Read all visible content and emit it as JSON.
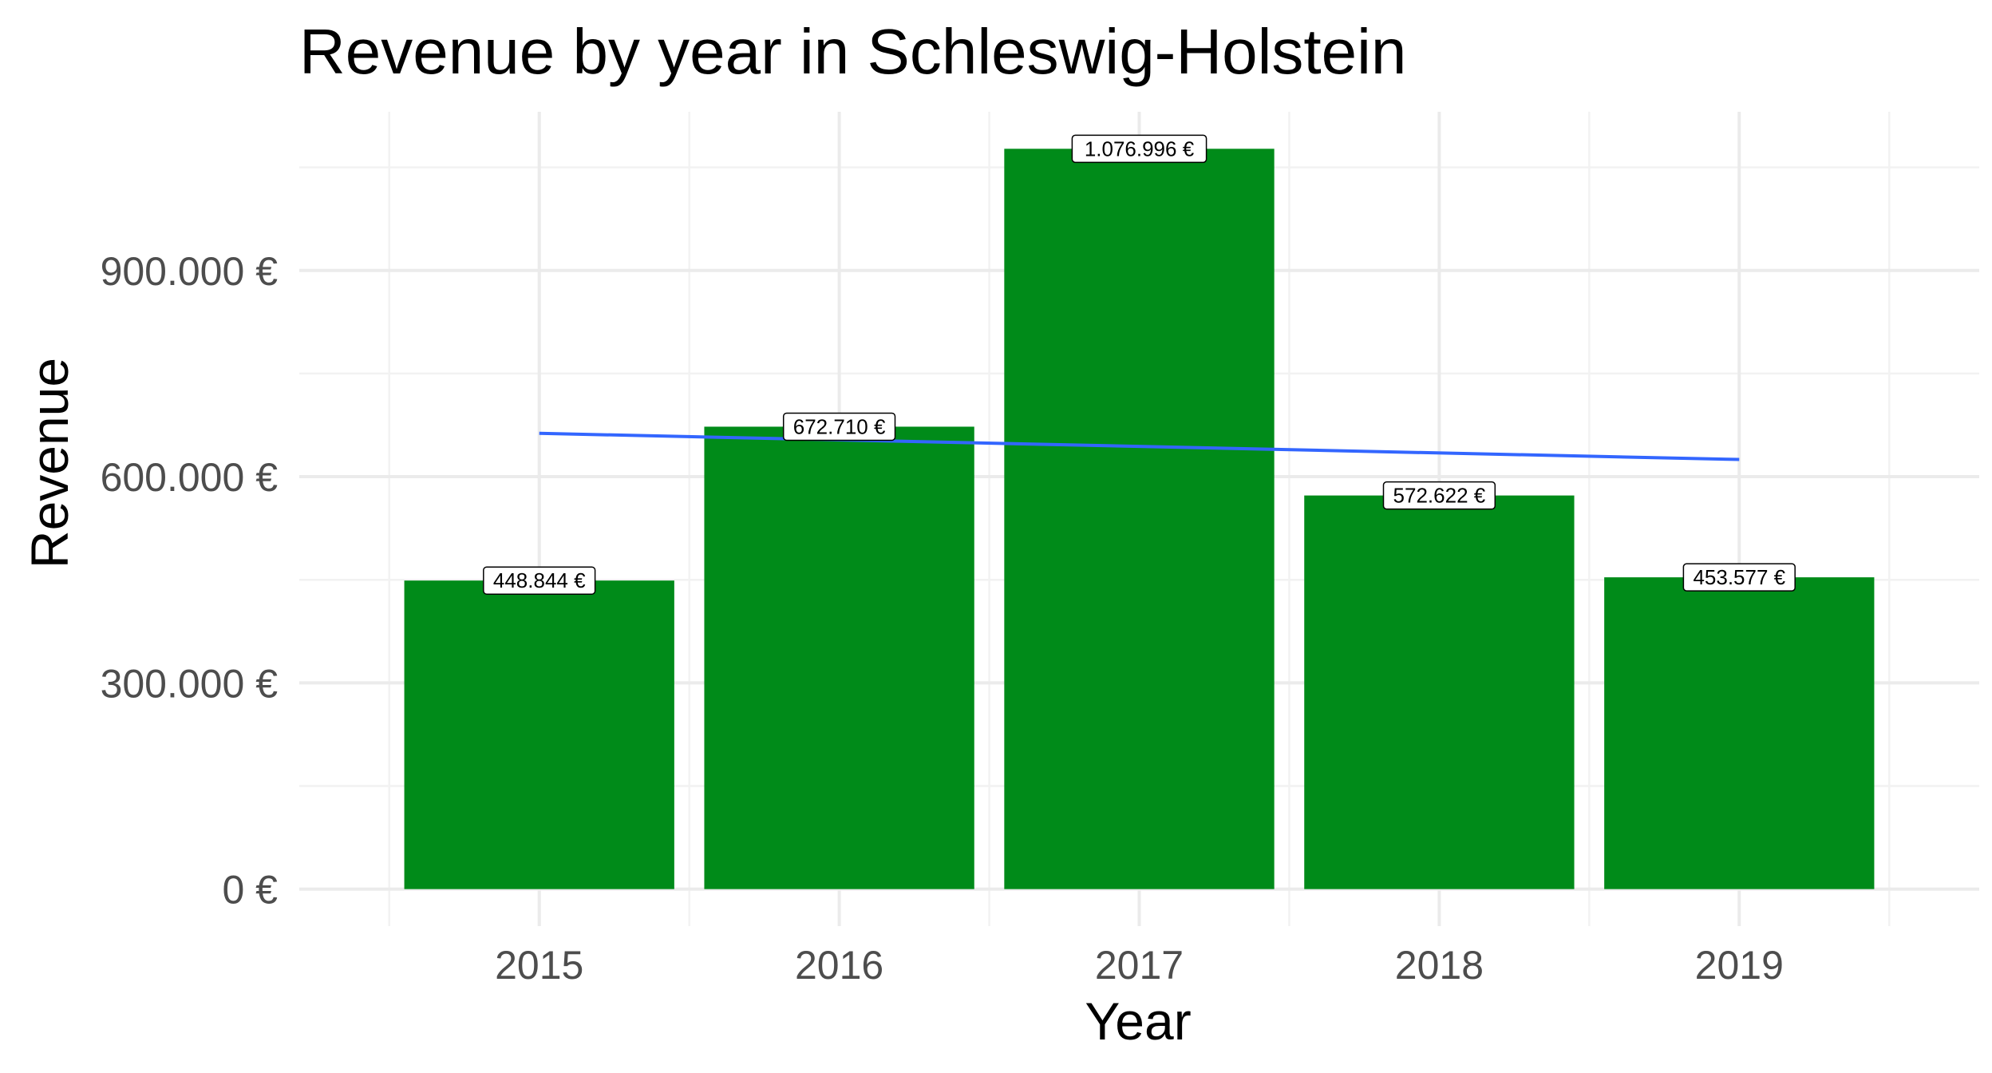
{
  "chart_data": {
    "type": "bar",
    "title": "Revenue by year in Schleswig-Holstein",
    "xlabel": "Year",
    "ylabel": "Revenue",
    "categories": [
      "2015",
      "2016",
      "2017",
      "2018",
      "2019"
    ],
    "values": [
      448844,
      672710,
      1076996,
      572622,
      453577
    ],
    "value_labels": [
      "448.844 €",
      "672.710 €",
      "1.076.996 €",
      "572.622 €",
      "453.577 €"
    ],
    "y_ticks": [
      0,
      300000,
      600000,
      900000
    ],
    "y_tick_labels": [
      "0 €",
      "300.000 €",
      "600.000 €",
      "900.000 €"
    ],
    "ylim": [
      -53850,
      1130846
    ],
    "grid": true,
    "legend": "none",
    "trend_line": {
      "type": "linear",
      "start": 663000,
      "end": 625000
    },
    "colors": {
      "bar": "#008b19",
      "trend": "#3366ff",
      "grid": "#ebebeb"
    }
  }
}
